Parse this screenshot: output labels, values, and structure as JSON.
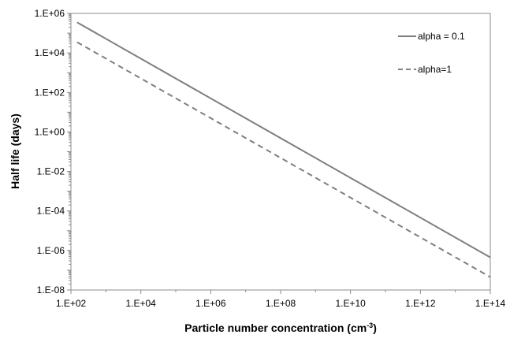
{
  "chart_data": {
    "type": "line",
    "title": "",
    "xlabel": "Particle number concentration (cm",
    "xlabel_superscript": "-3",
    "xlabel_suffix": ")",
    "ylabel": "Half life (days)",
    "x_scale": "log",
    "y_scale": "log",
    "xlim": [
      100,
      100000000000000
    ],
    "ylim": [
      1e-08,
      1000000
    ],
    "x_tick_labels": [
      "1.E+02",
      "1.E+04",
      "1.E+06",
      "1.E+08",
      "1.E+10",
      "1.E+12",
      "1.E+14"
    ],
    "y_tick_labels": [
      "1.E+06",
      "1.E+04",
      "1.E+02",
      "1.E+00",
      "1.E-02",
      "1.E-04",
      "1.E-06",
      "1.E-08"
    ],
    "grid": false,
    "legend_position": "top-right",
    "series": [
      {
        "name": "alpha = 0.1",
        "style": "solid",
        "color": "#7f7f7f",
        "x": [
          150,
          100000000000000
        ],
        "y": [
          350000,
          4.5e-07
        ]
      },
      {
        "name": "alpha=1",
        "style": "dashed",
        "color": "#7f7f7f",
        "x": [
          150,
          100000000000000
        ],
        "y": [
          35000,
          4.5e-08
        ]
      }
    ]
  }
}
